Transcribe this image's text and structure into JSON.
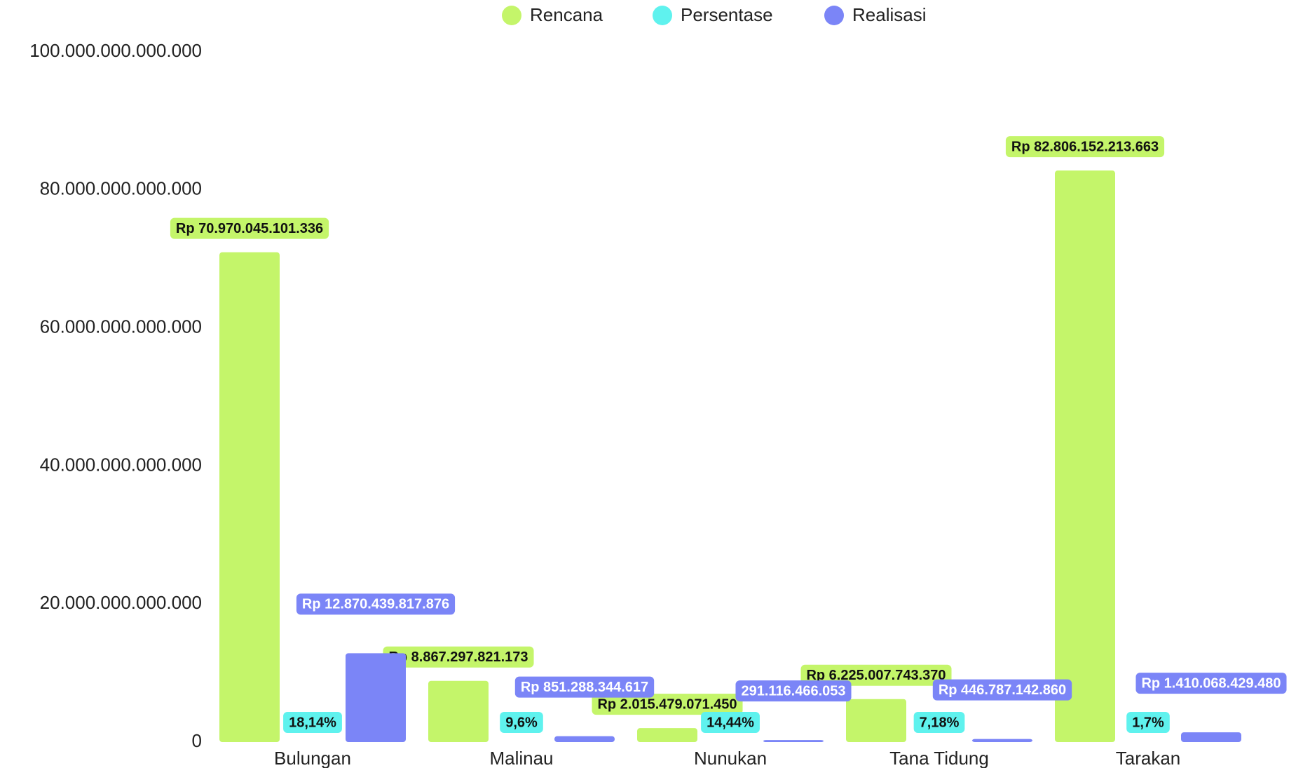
{
  "chart_data": {
    "type": "bar",
    "categories": [
      "Bulungan",
      "Malinau",
      "Nunukan",
      "Tana Tidung",
      "Tarakan"
    ],
    "series": [
      {
        "name": "Rencana",
        "color": "#c4f56a",
        "values": [
          70970045101336,
          8867297821173,
          2015479071450,
          6225007743370,
          82806152213663
        ],
        "value_labels": [
          "Rp 70.970.045.101.336",
          "Rp 8.867.297.821.173",
          "Rp 2.015.479.071.450",
          "Rp 6.225.007.743.370",
          "Rp 82.806.152.213.663"
        ]
      },
      {
        "name": "Persentase",
        "color": "#5ff2ee",
        "values": [
          18.14,
          9.6,
          14.44,
          7.18,
          1.7
        ],
        "value_labels": [
          "18,14%",
          "9,6%",
          "14,44%",
          "7,18%",
          "1,7%"
        ]
      },
      {
        "name": "Realisasi",
        "color": "#7b85f7",
        "values": [
          12870439817876,
          851288344617,
          291116466053,
          446787142860,
          1410068429480
        ],
        "value_labels": [
          "Rp 12.870.439.817.876",
          "Rp 851.288.344.617",
          "291.116.466.053",
          "Rp 446.787.142.860",
          "Rp 1.410.068.429.480"
        ]
      }
    ],
    "ylim": [
      0,
      100000000000000
    ],
    "yticks": [
      0,
      {
        "value": 20000000000000,
        "label": "20.000.000.000.000"
      },
      {
        "value": 40000000000000,
        "label": "40.000.000.000.000"
      },
      {
        "value": 60000000000000,
        "label": "60.000.000.000.000"
      },
      {
        "value": 80000000000000,
        "label": "80.000.000.000.000"
      },
      {
        "value": 100000000000000,
        "label": "100.000.000.000.000"
      }
    ],
    "legend": "top"
  }
}
